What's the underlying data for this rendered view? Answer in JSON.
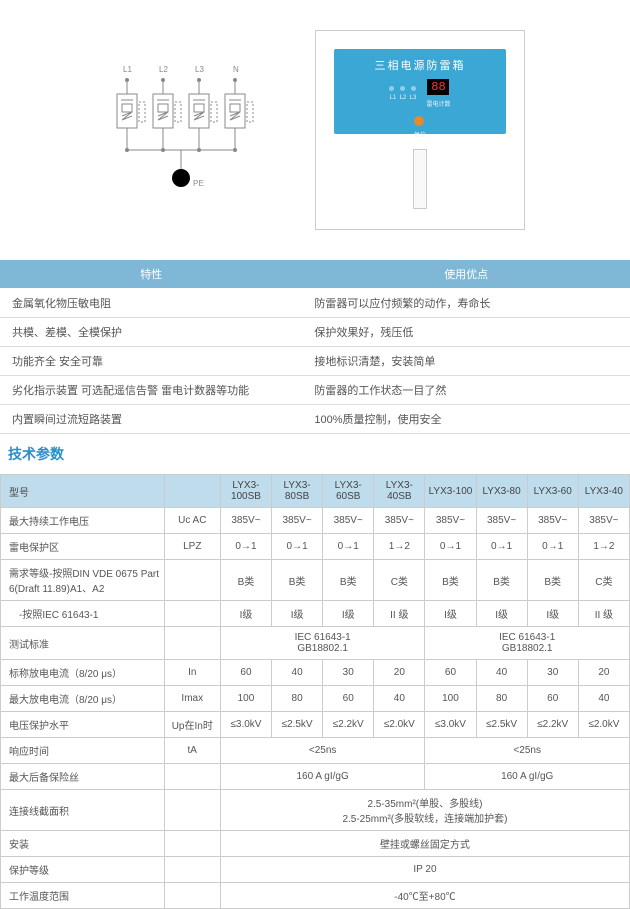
{
  "circuit": {
    "terminals": [
      "L1",
      "L2",
      "L3",
      "N"
    ],
    "ground": "PE"
  },
  "device": {
    "title": "三相电源防雷箱",
    "led_labels": [
      "L1",
      "L2",
      "L3"
    ],
    "digit_display": "88",
    "digit_caption": "雷电计数",
    "knob_caption": "复位"
  },
  "feat_headers": [
    "特性",
    "使用优点"
  ],
  "features": [
    [
      "金属氧化物压敏电阻",
      "防雷器可以应付频繁的动作，寿命长"
    ],
    [
      "共模、差模、全模保护",
      "保护效果好，残压低"
    ],
    [
      "功能齐全 安全可靠",
      "接地标识清楚，安装简单"
    ],
    [
      "劣化指示装置 可选配遥信告警 雷电计数器等功能",
      "防雷器的工作状态一目了然"
    ],
    [
      "内置瞬间过流短路装置",
      "100%质量控制，使用安全"
    ]
  ],
  "spec_title": "技术参数",
  "models": [
    "LYX3-100SB",
    "LYX3-80SB",
    "LYX3-60SB",
    "LYX3-40SB",
    "LYX3-100",
    "LYX3-80",
    "LYX3-60",
    "LYX3-40"
  ],
  "rows": [
    {
      "label": "型号",
      "unit": "",
      "vals": [
        "LYX3-100SB",
        "LYX3-80SB",
        "LYX3-60SB",
        "LYX3-40SB",
        "LYX3-100",
        "LYX3-80",
        "LYX3-60",
        "LYX3-40"
      ],
      "header": true
    },
    {
      "label": "最大持续工作电压",
      "unit": "Uc AC",
      "vals": [
        "385V~",
        "385V~",
        "385V~",
        "385V~",
        "385V~",
        "385V~",
        "385V~",
        "385V~"
      ]
    },
    {
      "label": "雷电保护区",
      "unit": "LPZ",
      "vals": [
        "0→1",
        "0→1",
        "0→1",
        "1→2",
        "0→1",
        "0→1",
        "0→1",
        "1→2"
      ]
    },
    {
      "label": "需求等级-按照DIN VDE 0675 Part 6(Draft 11.89)A1、A2",
      "unit": "",
      "vals": [
        "B类",
        "B类",
        "B类",
        "C类",
        "B类",
        "B类",
        "B类",
        "C类"
      ]
    },
    {
      "label": "　-按照IEC 61643-1",
      "unit": "",
      "vals": [
        "I级",
        "I级",
        "I级",
        "II 级",
        "I级",
        "I级",
        "I级",
        "II 级"
      ]
    },
    {
      "label": "测试标准",
      "unit": "",
      "span": [
        4,
        4
      ],
      "vals": [
        "IEC 61643-1\nGB18802.1",
        "IEC 61643-1\nGB18802.1"
      ]
    },
    {
      "label": "标称放电电流（8/20 μs）",
      "unit": "In",
      "vals": [
        "60",
        "40",
        "30",
        "20",
        "60",
        "40",
        "30",
        "20"
      ]
    },
    {
      "label": "最大放电电流（8/20 μs）",
      "unit": "Imax",
      "vals": [
        "100",
        "80",
        "60",
        "40",
        "100",
        "80",
        "60",
        "40"
      ]
    },
    {
      "label": "电压保护水平",
      "unit": "Up在In时",
      "vals": [
        "≤3.0kV",
        "≤2.5kV",
        "≤2.2kV",
        "≤2.0kV",
        "≤3.0kV",
        "≤2.5kV",
        "≤2.2kV",
        "≤2.0kV"
      ]
    },
    {
      "label": "响应时间",
      "unit": "tA",
      "span": [
        4,
        4
      ],
      "vals": [
        "<25ns",
        "<25ns"
      ]
    },
    {
      "label": "最大后备保险丝",
      "unit": "",
      "span": [
        4,
        4
      ],
      "vals": [
        "160 A gI/gG",
        "160 A gI/gG"
      ]
    },
    {
      "label": "连接线截面积",
      "unit": "",
      "span": [
        8
      ],
      "vals": [
        "2.5-35mm²(单股、多股线)\n2.5-25mm²(多股软线，连接端加护套)"
      ]
    },
    {
      "label": "安装",
      "unit": "",
      "span": [
        8
      ],
      "vals": [
        "壁挂或螺丝固定方式"
      ]
    },
    {
      "label": "保护等级",
      "unit": "",
      "span": [
        8
      ],
      "vals": [
        "IP 20"
      ]
    },
    {
      "label": "工作温度范围",
      "unit": "",
      "span": [
        8
      ],
      "vals": [
        "-40℃至+80℃"
      ]
    }
  ],
  "colors": {
    "header_blue": "#bfdcec",
    "feat_blue": "#7fb8d6",
    "panel_blue": "#3ba7d4",
    "title_blue": "#2a8fc7"
  }
}
